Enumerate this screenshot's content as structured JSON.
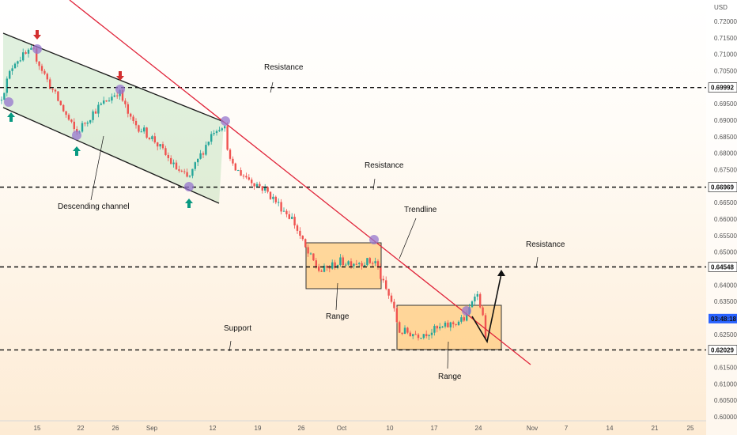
{
  "chart_data": {
    "type": "candlestick",
    "currency": "USD",
    "y_ticks": [
      "0.72000",
      "0.71500",
      "0.71000",
      "0.70500",
      "0.70000",
      "0.69500",
      "0.69000",
      "0.68500",
      "0.68000",
      "0.67500",
      "0.67000",
      "0.66500",
      "0.66000",
      "0.65500",
      "0.65000",
      "0.64500",
      "0.64000",
      "0.63500",
      "0.63000",
      "0.62500",
      "0.62000",
      "0.61500",
      "0.61000",
      "0.60500",
      "0.60000"
    ],
    "ylim": [
      0.599,
      0.7235
    ],
    "x_ticks": [
      "15",
      "22",
      "26",
      "Sep",
      "12",
      "19",
      "26",
      "Oct",
      "10",
      "17",
      "24",
      "Nov",
      "7",
      "14",
      "21",
      "25"
    ],
    "levels": [
      {
        "label": "0.69992",
        "value": 0.69992,
        "bg": "#ffffff",
        "fg": "#111111"
      },
      {
        "label": "0.66969",
        "value": 0.66969,
        "bg": "#ffffff",
        "fg": "#111111"
      },
      {
        "label": "0.64548",
        "value": 0.64548,
        "bg": "#ffffff",
        "fg": "#111111"
      },
      {
        "label": "0.62029",
        "value": 0.62029,
        "bg": "#ffffff",
        "fg": "#111111"
      }
    ],
    "current_price": {
      "label": "03:48:18",
      "value": 0.6298,
      "bg": "#2962ff",
      "fg": "#ffffff"
    },
    "annotations": {
      "resistance_1": "Resistance",
      "resistance_2": "Resistance",
      "resistance_3": "Resistance",
      "support": "Support",
      "descending_channel": "Descending channel",
      "trendline": "Trendline",
      "range_1": "Range",
      "range_2": "Range"
    },
    "colors": {
      "up": "#26a69a",
      "down": "#ef5350",
      "trendline": "#e0243a",
      "channel": "#1a1a1a",
      "marker": "#9575cd",
      "range_fill": "#ffcc80",
      "range_stroke": "#333333",
      "arrow_up": "#089981",
      "arrow_down": "#d32f2f"
    }
  }
}
